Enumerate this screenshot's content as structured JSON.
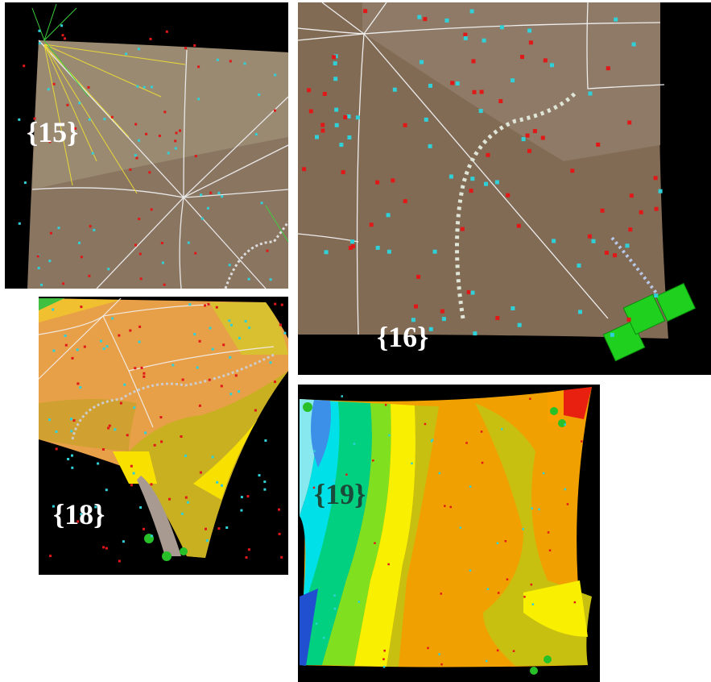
{
  "panels": [
    {
      "label": "{15}"
    },
    {
      "label": "{16}"
    },
    {
      "label": "{18}"
    },
    {
      "label": "{19}"
    }
  ]
}
